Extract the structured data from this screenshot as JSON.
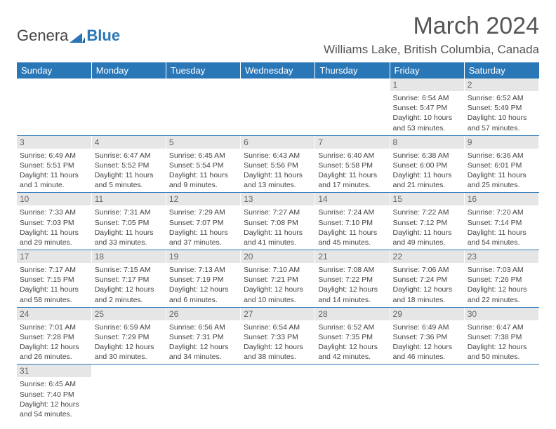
{
  "logo": {
    "text1": "Genera",
    "text2": "Blue"
  },
  "title": "March 2024",
  "location": "Williams Lake, British Columbia, Canada",
  "colors": {
    "header_bg": "#2a77b8",
    "header_text": "#ffffff",
    "daynum_bg": "#e6e6e6",
    "border": "#2a77b8",
    "text": "#444444"
  },
  "weekdays": [
    "Sunday",
    "Monday",
    "Tuesday",
    "Wednesday",
    "Thursday",
    "Friday",
    "Saturday"
  ],
  "weeks": [
    [
      null,
      null,
      null,
      null,
      null,
      {
        "n": "1",
        "sr": "Sunrise: 6:54 AM",
        "ss": "Sunset: 5:47 PM",
        "dl": "Daylight: 10 hours and 53 minutes."
      },
      {
        "n": "2",
        "sr": "Sunrise: 6:52 AM",
        "ss": "Sunset: 5:49 PM",
        "dl": "Daylight: 10 hours and 57 minutes."
      }
    ],
    [
      {
        "n": "3",
        "sr": "Sunrise: 6:49 AM",
        "ss": "Sunset: 5:51 PM",
        "dl": "Daylight: 11 hours and 1 minute."
      },
      {
        "n": "4",
        "sr": "Sunrise: 6:47 AM",
        "ss": "Sunset: 5:52 PM",
        "dl": "Daylight: 11 hours and 5 minutes."
      },
      {
        "n": "5",
        "sr": "Sunrise: 6:45 AM",
        "ss": "Sunset: 5:54 PM",
        "dl": "Daylight: 11 hours and 9 minutes."
      },
      {
        "n": "6",
        "sr": "Sunrise: 6:43 AM",
        "ss": "Sunset: 5:56 PM",
        "dl": "Daylight: 11 hours and 13 minutes."
      },
      {
        "n": "7",
        "sr": "Sunrise: 6:40 AM",
        "ss": "Sunset: 5:58 PM",
        "dl": "Daylight: 11 hours and 17 minutes."
      },
      {
        "n": "8",
        "sr": "Sunrise: 6:38 AM",
        "ss": "Sunset: 6:00 PM",
        "dl": "Daylight: 11 hours and 21 minutes."
      },
      {
        "n": "9",
        "sr": "Sunrise: 6:36 AM",
        "ss": "Sunset: 6:01 PM",
        "dl": "Daylight: 11 hours and 25 minutes."
      }
    ],
    [
      {
        "n": "10",
        "sr": "Sunrise: 7:33 AM",
        "ss": "Sunset: 7:03 PM",
        "dl": "Daylight: 11 hours and 29 minutes."
      },
      {
        "n": "11",
        "sr": "Sunrise: 7:31 AM",
        "ss": "Sunset: 7:05 PM",
        "dl": "Daylight: 11 hours and 33 minutes."
      },
      {
        "n": "12",
        "sr": "Sunrise: 7:29 AM",
        "ss": "Sunset: 7:07 PM",
        "dl": "Daylight: 11 hours and 37 minutes."
      },
      {
        "n": "13",
        "sr": "Sunrise: 7:27 AM",
        "ss": "Sunset: 7:08 PM",
        "dl": "Daylight: 11 hours and 41 minutes."
      },
      {
        "n": "14",
        "sr": "Sunrise: 7:24 AM",
        "ss": "Sunset: 7:10 PM",
        "dl": "Daylight: 11 hours and 45 minutes."
      },
      {
        "n": "15",
        "sr": "Sunrise: 7:22 AM",
        "ss": "Sunset: 7:12 PM",
        "dl": "Daylight: 11 hours and 49 minutes."
      },
      {
        "n": "16",
        "sr": "Sunrise: 7:20 AM",
        "ss": "Sunset: 7:14 PM",
        "dl": "Daylight: 11 hours and 54 minutes."
      }
    ],
    [
      {
        "n": "17",
        "sr": "Sunrise: 7:17 AM",
        "ss": "Sunset: 7:15 PM",
        "dl": "Daylight: 11 hours and 58 minutes."
      },
      {
        "n": "18",
        "sr": "Sunrise: 7:15 AM",
        "ss": "Sunset: 7:17 PM",
        "dl": "Daylight: 12 hours and 2 minutes."
      },
      {
        "n": "19",
        "sr": "Sunrise: 7:13 AM",
        "ss": "Sunset: 7:19 PM",
        "dl": "Daylight: 12 hours and 6 minutes."
      },
      {
        "n": "20",
        "sr": "Sunrise: 7:10 AM",
        "ss": "Sunset: 7:21 PM",
        "dl": "Daylight: 12 hours and 10 minutes."
      },
      {
        "n": "21",
        "sr": "Sunrise: 7:08 AM",
        "ss": "Sunset: 7:22 PM",
        "dl": "Daylight: 12 hours and 14 minutes."
      },
      {
        "n": "22",
        "sr": "Sunrise: 7:06 AM",
        "ss": "Sunset: 7:24 PM",
        "dl": "Daylight: 12 hours and 18 minutes."
      },
      {
        "n": "23",
        "sr": "Sunrise: 7:03 AM",
        "ss": "Sunset: 7:26 PM",
        "dl": "Daylight: 12 hours and 22 minutes."
      }
    ],
    [
      {
        "n": "24",
        "sr": "Sunrise: 7:01 AM",
        "ss": "Sunset: 7:28 PM",
        "dl": "Daylight: 12 hours and 26 minutes."
      },
      {
        "n": "25",
        "sr": "Sunrise: 6:59 AM",
        "ss": "Sunset: 7:29 PM",
        "dl": "Daylight: 12 hours and 30 minutes."
      },
      {
        "n": "26",
        "sr": "Sunrise: 6:56 AM",
        "ss": "Sunset: 7:31 PM",
        "dl": "Daylight: 12 hours and 34 minutes."
      },
      {
        "n": "27",
        "sr": "Sunrise: 6:54 AM",
        "ss": "Sunset: 7:33 PM",
        "dl": "Daylight: 12 hours and 38 minutes."
      },
      {
        "n": "28",
        "sr": "Sunrise: 6:52 AM",
        "ss": "Sunset: 7:35 PM",
        "dl": "Daylight: 12 hours and 42 minutes."
      },
      {
        "n": "29",
        "sr": "Sunrise: 6:49 AM",
        "ss": "Sunset: 7:36 PM",
        "dl": "Daylight: 12 hours and 46 minutes."
      },
      {
        "n": "30",
        "sr": "Sunrise: 6:47 AM",
        "ss": "Sunset: 7:38 PM",
        "dl": "Daylight: 12 hours and 50 minutes."
      }
    ],
    [
      {
        "n": "31",
        "sr": "Sunrise: 6:45 AM",
        "ss": "Sunset: 7:40 PM",
        "dl": "Daylight: 12 hours and 54 minutes."
      },
      null,
      null,
      null,
      null,
      null,
      null
    ]
  ]
}
